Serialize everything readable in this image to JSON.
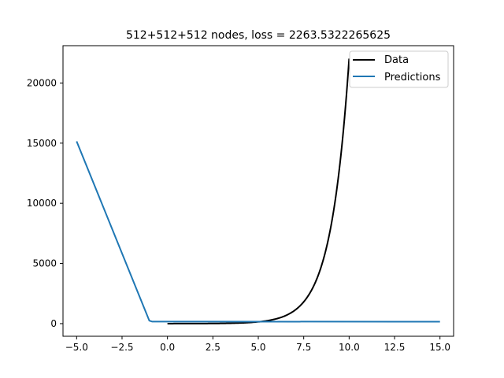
{
  "chart_data": {
    "type": "line",
    "title": "512+512+512 nodes, loss = 2263.5322265625",
    "xlabel": "",
    "ylabel": "",
    "xlim": [
      -5.75,
      15.75
    ],
    "ylim": [
      -1050,
      23100
    ],
    "xticks": [
      -5.0,
      -2.5,
      0.0,
      2.5,
      5.0,
      7.5,
      10.0,
      12.5,
      15.0
    ],
    "xtick_labels": [
      "−5.0",
      "−2.5",
      "0.0",
      "2.5",
      "5.0",
      "7.5",
      "10.0",
      "12.5",
      "15.0"
    ],
    "yticks": [
      0,
      5000,
      10000,
      15000,
      20000
    ],
    "ytick_labels": [
      "0",
      "5000",
      "10000",
      "15000",
      "20000"
    ],
    "grid": false,
    "legend": {
      "position": "upper-right",
      "entries": [
        "Data",
        "Predictions"
      ]
    },
    "series": [
      {
        "name": "Data",
        "color": "#000000",
        "formula": "exp(x)",
        "x_range": [
          0,
          10
        ],
        "x": [
          0,
          1,
          2,
          3,
          4,
          5,
          6,
          7,
          7.5,
          8,
          8.5,
          9,
          9.5,
          10
        ],
        "y": [
          1,
          2.7,
          7.4,
          20.1,
          54.6,
          148.4,
          403.4,
          1096.6,
          1808.0,
          2981.0,
          4914.8,
          8103.1,
          13359.7,
          22026.5
        ]
      },
      {
        "name": "Predictions",
        "color": "#1f77b4",
        "x": [
          -5.0,
          -1.0,
          -0.85,
          15.0
        ],
        "y": [
          15150,
          250,
          170,
          160
        ]
      }
    ]
  }
}
